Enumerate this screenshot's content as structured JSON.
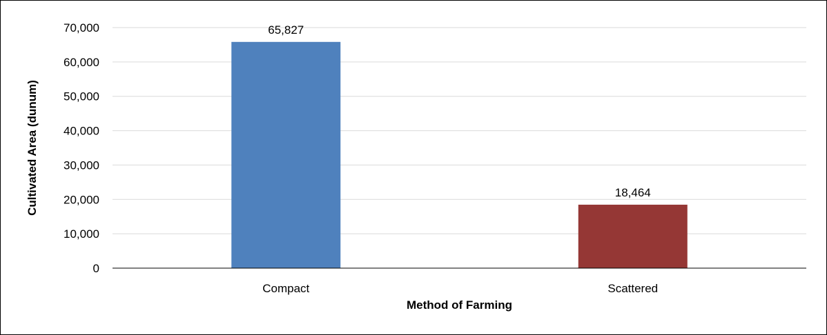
{
  "chart_data": {
    "type": "bar",
    "title": "",
    "xlabel": "Method of Farming",
    "ylabel": "Cultivated Area (dunum)",
    "categories": [
      "Compact",
      "Scattered"
    ],
    "values": [
      65827,
      18464
    ],
    "value_labels": [
      "65,827",
      "18,464"
    ],
    "bar_colors": [
      "#4f81bd",
      "#953735"
    ],
    "ylim": [
      0,
      70000
    ],
    "yticks": [
      0,
      10000,
      20000,
      30000,
      40000,
      50000,
      60000,
      70000
    ],
    "ytick_labels": [
      "0",
      "10,000",
      "20,000",
      "30,000",
      "40,000",
      "50,000",
      "60,000",
      "70,000"
    ],
    "grid": true,
    "legend": "none"
  }
}
